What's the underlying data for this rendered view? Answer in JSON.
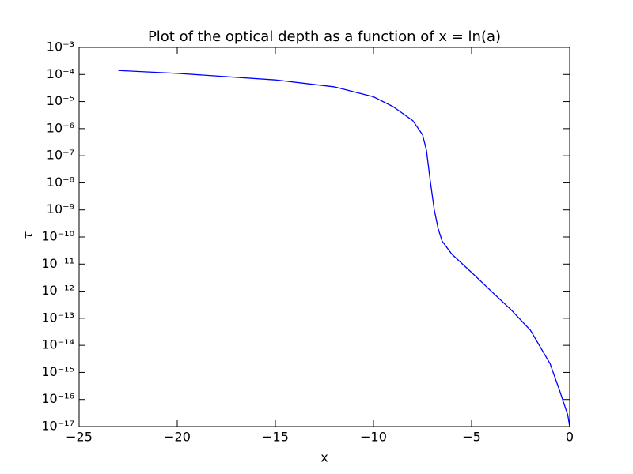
{
  "chart_data": {
    "type": "line",
    "title": "Plot of the optical depth as a function of x = ln(a)",
    "xlabel": "x",
    "ylabel": "τ",
    "yscale": "log",
    "xlim": [
      -25,
      0
    ],
    "ylim": [
      1e-17,
      0.001
    ],
    "xticks": [
      {
        "value": -25,
        "label": "−25"
      },
      {
        "value": -20,
        "label": "−20"
      },
      {
        "value": -15,
        "label": "−15"
      },
      {
        "value": -10,
        "label": "−10"
      },
      {
        "value": -5,
        "label": "−5"
      },
      0
    ],
    "yticks": [
      {
        "value": 1e-17,
        "label": "10⁻¹⁷"
      },
      {
        "value": 1e-16,
        "label": "10⁻¹⁶"
      },
      {
        "value": 1e-15,
        "label": "10⁻¹⁵"
      },
      {
        "value": 1e-14,
        "label": "10⁻¹⁴"
      },
      {
        "value": 1e-13,
        "label": "10⁻¹³"
      },
      {
        "value": 1e-12,
        "label": "10⁻¹²"
      },
      {
        "value": 1e-11,
        "label": "10⁻¹¹"
      },
      {
        "value": 1e-10,
        "label": "10⁻¹⁰"
      },
      {
        "value": 1e-09,
        "label": "10⁻⁹"
      },
      {
        "value": 1e-08,
        "label": "10⁻⁸"
      },
      {
        "value": 1e-07,
        "label": "10⁻⁷"
      },
      {
        "value": 1e-06,
        "label": "10⁻⁶"
      },
      {
        "value": 1e-05,
        "label": "10⁻⁵"
      },
      {
        "value": 0.0001,
        "label": "10⁻⁴"
      },
      {
        "value": 0.001,
        "label": "10⁻³"
      }
    ],
    "x": [
      -23,
      -20,
      -15,
      -12,
      -10,
      -9,
      -8,
      -7.5,
      -7.3,
      -7.1,
      -6.9,
      -6.7,
      -6.5,
      -6,
      -5,
      -4,
      -3,
      -2,
      -1,
      -0.5,
      -0.1,
      0
    ],
    "series": [
      {
        "name": "tau",
        "color": "#0000ff",
        "values": [
          0.00014,
          0.00011,
          6.3e-05,
          3.5e-05,
          1.5e-05,
          6.5e-06,
          2e-06,
          6e-07,
          1.6e-07,
          1.1e-08,
          1e-09,
          2e-10,
          7e-11,
          2.3e-11,
          4.9e-12,
          1e-12,
          2.1e-13,
          3.6e-14,
          2.1e-15,
          2e-16,
          2.7e-17,
          1e-17
        ]
      }
    ]
  }
}
